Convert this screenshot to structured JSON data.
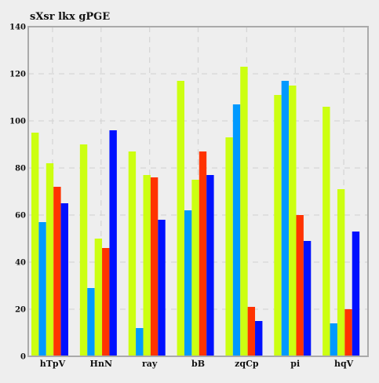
{
  "chart_data": {
    "type": "bar",
    "title": "sXsr lkx gPGE",
    "xlabel": "",
    "ylabel": "",
    "ylim": [
      0,
      140
    ],
    "yticks": [
      0,
      20,
      40,
      60,
      80,
      100,
      120,
      140
    ],
    "grid": true,
    "legend": "none",
    "categories": [
      "hTpV",
      "HnN",
      "ray",
      "bB",
      "zqCp",
      "pi",
      "hqV"
    ],
    "series": [
      {
        "color": "#ccff11",
        "values": [
          95,
          90,
          87,
          117,
          93,
          111,
          106
        ]
      },
      {
        "color": "#0099ff",
        "values": [
          57,
          29,
          12,
          62,
          107,
          117,
          14
        ]
      },
      {
        "color": "#ccff11",
        "values": [
          82,
          50,
          77,
          75,
          123,
          115,
          71
        ]
      },
      {
        "color": "#ff3300",
        "values": [
          72,
          46,
          76,
          87,
          21,
          60,
          20
        ]
      },
      {
        "color": "#0011ff",
        "values": [
          65,
          96,
          58,
          77,
          15,
          49,
          53
        ]
      }
    ]
  },
  "colors": {
    "background": "#eeeeee",
    "plot_border": "#aaaaaa",
    "grid": "#d6d6d6"
  }
}
